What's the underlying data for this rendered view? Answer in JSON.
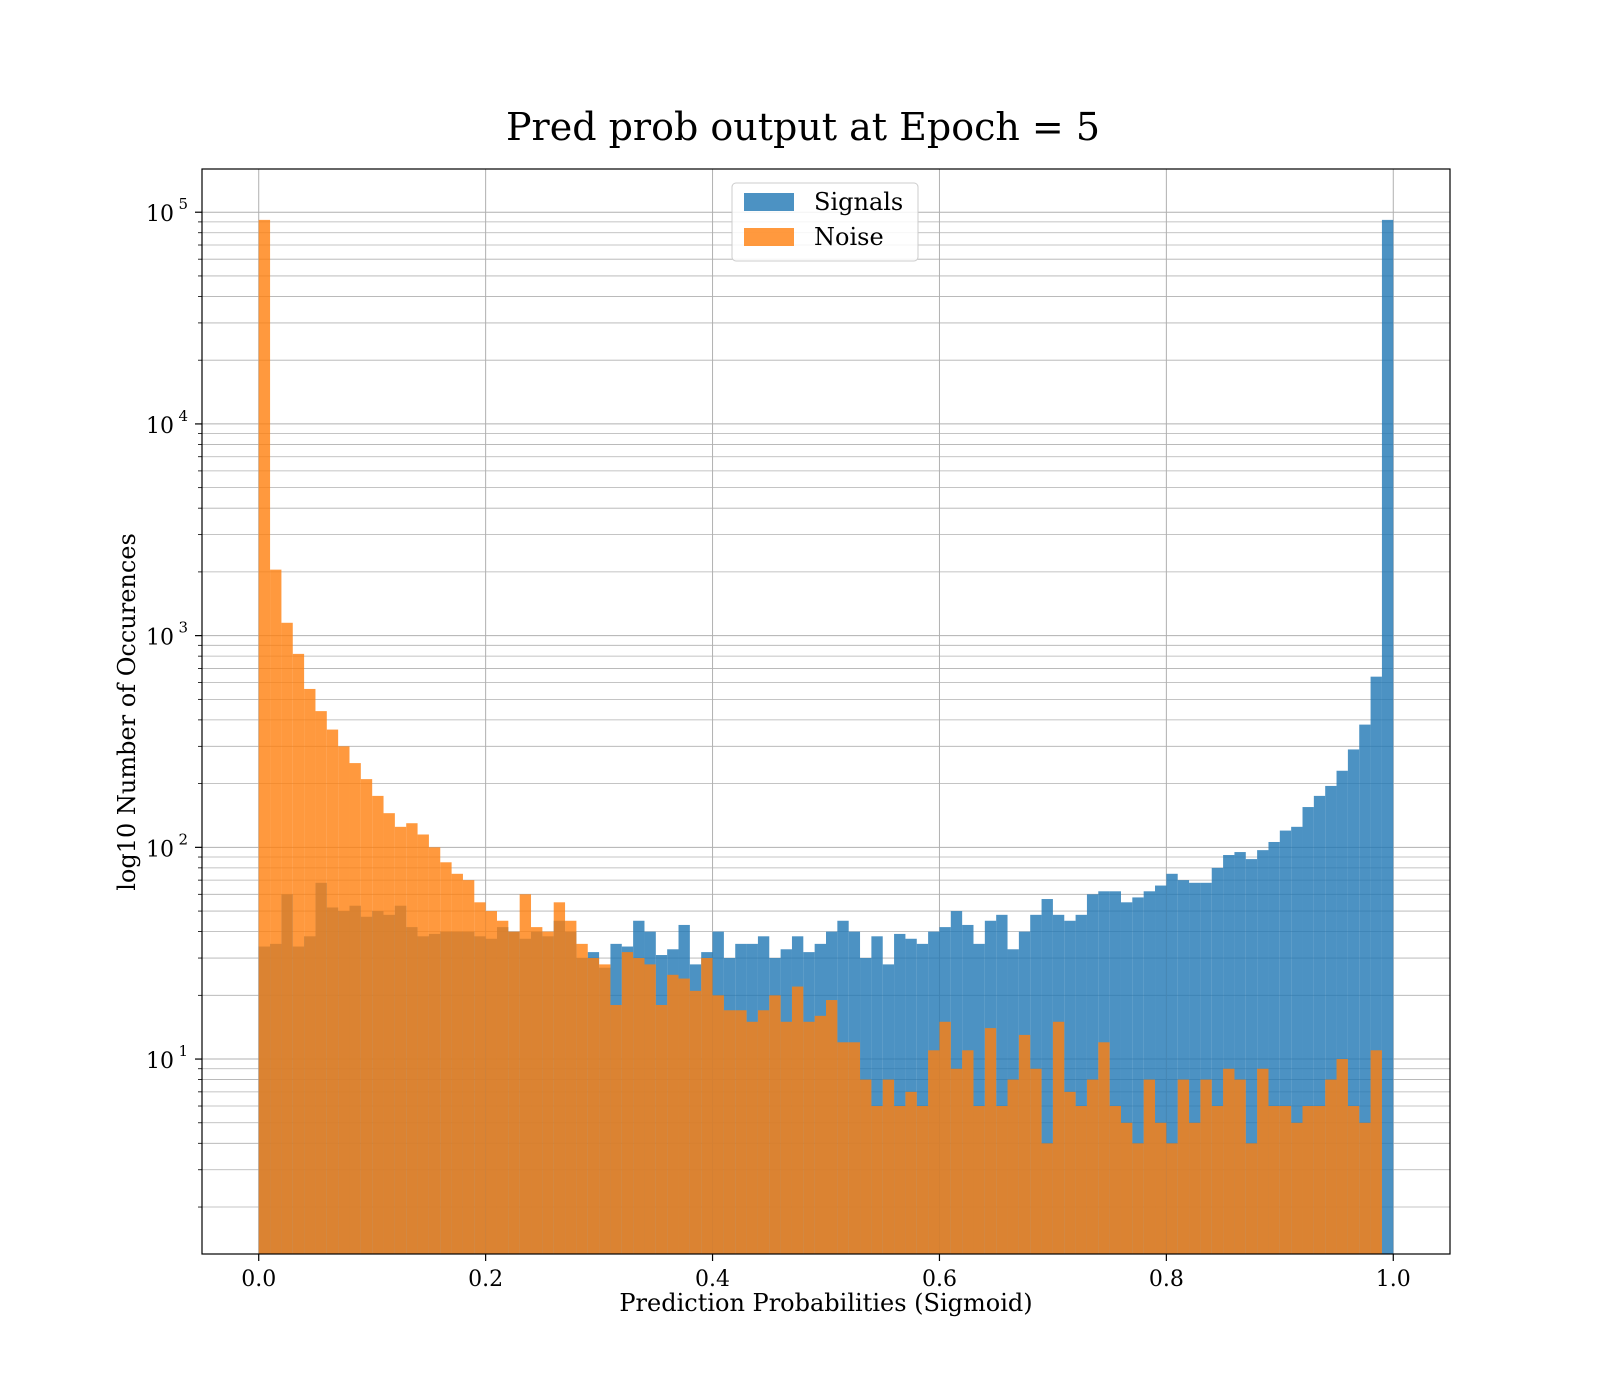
{
  "chart_data": {
    "type": "histogram",
    "title": "Pred prob output at Epoch = 5",
    "xlabel": "Prediction Probabilities (Sigmoid)",
    "ylabel": "log10 Number of Occurences",
    "x_scale": "linear",
    "y_scale": "log",
    "xlim": [
      -0.05,
      1.05
    ],
    "ylim": [
      1.2,
      160000
    ],
    "x_ticks": [
      "0.0",
      "0.2",
      "0.4",
      "0.6",
      "0.8",
      "1.0"
    ],
    "y_ticks": [
      {
        "base": "10",
        "exp": "1"
      },
      {
        "base": "10",
        "exp": "2"
      },
      {
        "base": "10",
        "exp": "3"
      },
      {
        "base": "10",
        "exp": "4"
      },
      {
        "base": "10",
        "exp": "5"
      }
    ],
    "grid": true,
    "legend_position": "upper center",
    "bins": {
      "start": 0.0,
      "end": 1.0,
      "count": 100
    },
    "series": [
      {
        "name": "Signals",
        "color": "#1f77b4",
        "alpha": 0.8,
        "counts": [
          34,
          35,
          60,
          34,
          38,
          68,
          52,
          50,
          53,
          47,
          50,
          48,
          53,
          42,
          38,
          39,
          40,
          40,
          40,
          38,
          37,
          42,
          40,
          37,
          40,
          38,
          45,
          40,
          30,
          32,
          27,
          35,
          34,
          45,
          40,
          31,
          33,
          43,
          28,
          32,
          40,
          30,
          35,
          35,
          38,
          30,
          33,
          38,
          32,
          35,
          40,
          45,
          40,
          30,
          38,
          28,
          39,
          37,
          35,
          40,
          42,
          50,
          43,
          35,
          45,
          48,
          33,
          40,
          48,
          57,
          48,
          45,
          48,
          60,
          62,
          62,
          55,
          58,
          62,
          66,
          75,
          70,
          68,
          68,
          80,
          92,
          95,
          88,
          97,
          106,
          120,
          125,
          155,
          175,
          195,
          230,
          290,
          380,
          640,
          92000
        ]
      },
      {
        "name": "Noise",
        "color": "#ff7f0e",
        "alpha": 0.8,
        "counts": [
          92000,
          2050,
          1150,
          820,
          560,
          440,
          360,
          300,
          250,
          210,
          175,
          145,
          125,
          130,
          115,
          100,
          85,
          75,
          70,
          55,
          50,
          45,
          40,
          60,
          42,
          40,
          55,
          45,
          35,
          30,
          28,
          18,
          32,
          30,
          28,
          18,
          25,
          24,
          21,
          30,
          20,
          17,
          17,
          15,
          17,
          20,
          15,
          22,
          15,
          16,
          19,
          12,
          12,
          8,
          6,
          8,
          6,
          7,
          6,
          11,
          15,
          9,
          11,
          6,
          14,
          6,
          8,
          13,
          9,
          4,
          15,
          7,
          6,
          8,
          12,
          6,
          5,
          4,
          8,
          5,
          4,
          8,
          5,
          8,
          6,
          9,
          8,
          4,
          9,
          6,
          6,
          5,
          6,
          6,
          8,
          10,
          6,
          5,
          11,
          0
        ]
      }
    ]
  }
}
